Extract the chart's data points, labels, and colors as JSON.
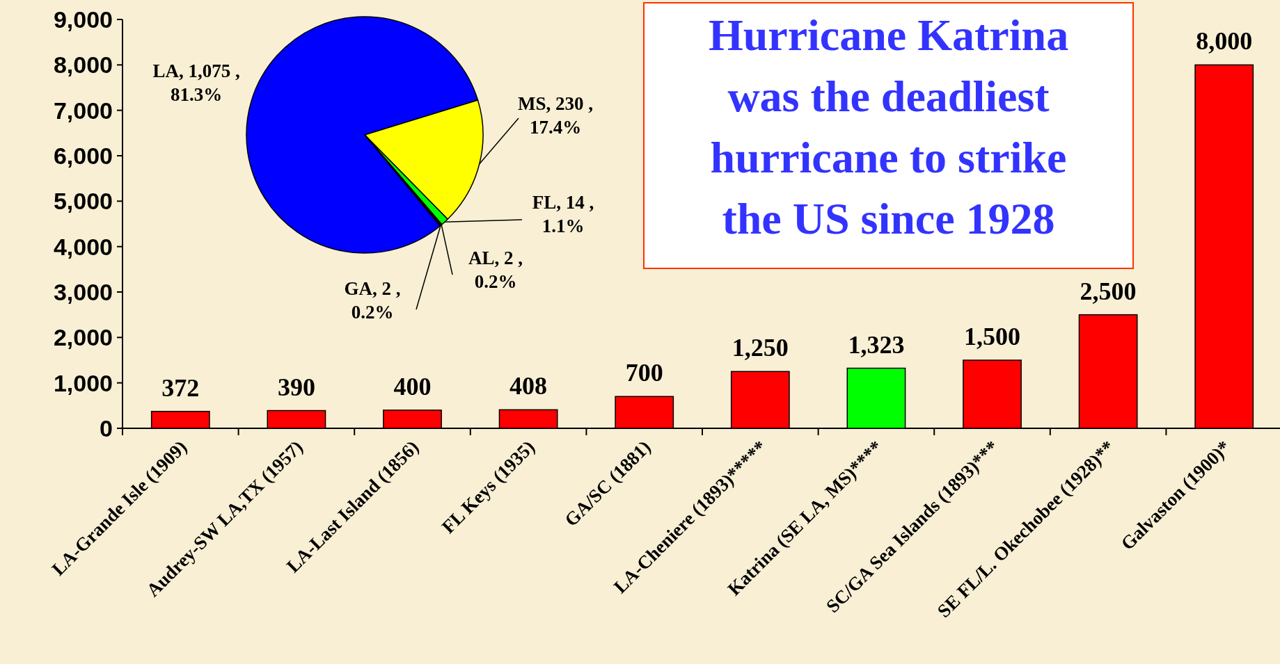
{
  "chart_data": [
    {
      "type": "bar",
      "categories": [
        "LA-Grande Isle (1909)",
        "Audrey-SW LA,TX (1957)",
        "LA-Last Island (1856)",
        "FL Keys (1935)",
        "GA/SC (1881)",
        "LA-Cheniere (1893)*****",
        "Katrina (SE LA, MS)****",
        "SC/GA Sea Islands (1893)***",
        "SE FL/L. Okechobee (1928)**",
        "Galvaston (1900)*"
      ],
      "values": [
        372,
        390,
        400,
        408,
        700,
        1250,
        1323,
        1500,
        2500,
        8000
      ],
      "colors": [
        "#ff0000",
        "#ff0000",
        "#ff0000",
        "#ff0000",
        "#ff0000",
        "#ff0000",
        "#00ff00",
        "#ff0000",
        "#ff0000",
        "#ff0000"
      ],
      "value_labels": [
        "372",
        "390",
        "400",
        "408",
        "700",
        "1,250",
        "1,323",
        "1,500",
        "2,500",
        "8,000"
      ],
      "ylim": [
        0,
        9000
      ],
      "yticks": [
        {
          "value": 0,
          "label": "0"
        },
        {
          "value": 1000,
          "label": "1,000"
        },
        {
          "value": 2000,
          "label": "2,000"
        },
        {
          "value": 3000,
          "label": "3,000"
        },
        {
          "value": 4000,
          "label": "4,000"
        },
        {
          "value": 5000,
          "label": "5,000"
        },
        {
          "value": 6000,
          "label": "6,000"
        },
        {
          "value": 7000,
          "label": "7,000"
        },
        {
          "value": 8000,
          "label": "8,000"
        },
        {
          "value": 9000,
          "label": "9,000"
        }
      ],
      "annotations": [
        "Hurricane Katrina was the deadliest hurricane to strike the US since 1928"
      ]
    },
    {
      "type": "pie",
      "categories": [
        "LA",
        "MS",
        "FL",
        "AL",
        "GA"
      ],
      "values": [
        1075,
        230,
        14,
        2,
        2
      ],
      "colors": [
        "#0000ff",
        "#ffff00",
        "#00ff00",
        "#808080",
        "#404040"
      ],
      "value_labels": [
        ", 1,075 , 81.3%",
        ", 230 , 17.4%",
        ", 14 , 1.1%",
        ", 2 , 0.2%",
        ", 2 , 0.2%"
      ]
    }
  ]
}
